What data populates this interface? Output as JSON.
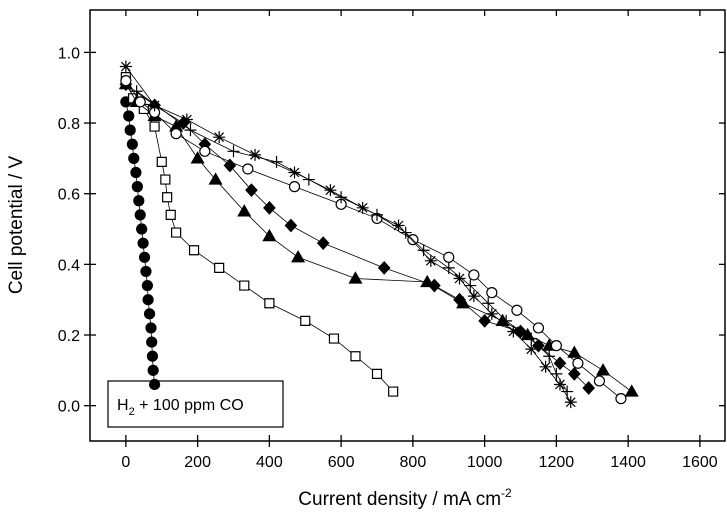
{
  "chart_data": {
    "type": "line",
    "x_label": {
      "text": "Current density / mA cm",
      "sup": "-2"
    },
    "y_label": "Cell potential / V",
    "annotation": {
      "base": "H",
      "sub": "2",
      "rest": " + 100 ppm CO"
    },
    "xlim": [
      -100,
      1670
    ],
    "ylim": [
      -0.1,
      1.12
    ],
    "xticks": [
      0,
      200,
      400,
      600,
      800,
      1000,
      1200,
      1400,
      1600
    ],
    "yticks": [
      {
        "value": 0,
        "label": "0.0"
      },
      {
        "value": 0.2,
        "label": "0.2"
      },
      {
        "value": 0.4,
        "label": "0.4"
      },
      {
        "value": 0.6,
        "label": "0.6"
      },
      {
        "value": 0.8,
        "label": "0.8"
      },
      {
        "value": 1,
        "label": "1.0"
      }
    ],
    "series": [
      {
        "marker": "circle",
        "filled": true,
        "color": "#000000",
        "x": [
          0,
          8,
          12,
          18,
          22,
          28,
          32,
          36,
          40,
          44,
          48,
          52,
          56,
          60,
          62,
          66,
          70,
          72,
          74,
          76,
          80
        ],
        "values": [
          0.86,
          0.82,
          0.78,
          0.74,
          0.7,
          0.66,
          0.62,
          0.58,
          0.54,
          0.5,
          0.46,
          0.42,
          0.38,
          0.34,
          0.3,
          0.26,
          0.22,
          0.18,
          0.14,
          0.1,
          0.06
        ]
      },
      {
        "marker": "square",
        "filled": false,
        "color": "#000000",
        "x": [
          0,
          20,
          50,
          80,
          100,
          110,
          115,
          125,
          140,
          190,
          260,
          330,
          400,
          500,
          580,
          640,
          700,
          745
        ],
        "values": [
          0.93,
          0.87,
          0.84,
          0.79,
          0.69,
          0.64,
          0.59,
          0.54,
          0.49,
          0.44,
          0.39,
          0.34,
          0.29,
          0.24,
          0.19,
          0.14,
          0.09,
          0.04
        ]
      },
      {
        "marker": "triangle",
        "filled": true,
        "color": "#000000",
        "x": [
          0,
          30,
          80,
          140,
          200,
          250,
          330,
          400,
          480,
          640,
          840,
          940,
          1050,
          1120,
          1180,
          1250,
          1330,
          1410
        ],
        "values": [
          0.91,
          0.86,
          0.82,
          0.79,
          0.7,
          0.64,
          0.55,
          0.48,
          0.42,
          0.36,
          0.35,
          0.29,
          0.24,
          0.2,
          0.17,
          0.15,
          0.1,
          0.04
        ]
      },
      {
        "marker": "diamond",
        "filled": true,
        "color": "#000000",
        "x": [
          0,
          80,
          160,
          220,
          290,
          350,
          400,
          460,
          550,
          720,
          860,
          930,
          1000,
          1100,
          1150,
          1210,
          1250,
          1290
        ],
        "values": [
          0.91,
          0.85,
          0.8,
          0.74,
          0.68,
          0.61,
          0.56,
          0.51,
          0.46,
          0.39,
          0.34,
          0.3,
          0.24,
          0.21,
          0.17,
          0.12,
          0.09,
          0.05
        ]
      },
      {
        "marker": "circle",
        "filled": false,
        "color": "#000000",
        "x": [
          0,
          40,
          80,
          140,
          220,
          340,
          470,
          600,
          700,
          800,
          900,
          970,
          1020,
          1090,
          1150,
          1200,
          1260,
          1320,
          1380
        ],
        "values": [
          0.92,
          0.86,
          0.83,
          0.77,
          0.72,
          0.67,
          0.62,
          0.57,
          0.53,
          0.47,
          0.42,
          0.37,
          0.32,
          0.27,
          0.22,
          0.17,
          0.12,
          0.07,
          0.02
        ]
      },
      {
        "marker": "asterisk",
        "filled": false,
        "color": "#000000",
        "x": [
          0,
          80,
          170,
          260,
          360,
          470,
          570,
          660,
          760,
          850,
          930,
          970,
          1020,
          1080,
          1130,
          1170,
          1210,
          1240
        ],
        "values": [
          0.96,
          0.85,
          0.81,
          0.76,
          0.71,
          0.66,
          0.61,
          0.56,
          0.51,
          0.41,
          0.36,
          0.31,
          0.26,
          0.21,
          0.16,
          0.11,
          0.06,
          0.01
        ]
      },
      {
        "marker": "plus",
        "filled": false,
        "color": "#000000",
        "x": [
          30,
          180,
          300,
          420,
          510,
          600,
          700,
          780,
          830,
          900,
          960,
          1010,
          1060,
          1130,
          1180,
          1200,
          1230
        ],
        "values": [
          0.89,
          0.78,
          0.72,
          0.69,
          0.64,
          0.59,
          0.54,
          0.49,
          0.44,
          0.39,
          0.34,
          0.29,
          0.24,
          0.19,
          0.14,
          0.09,
          0.04
        ]
      }
    ]
  }
}
